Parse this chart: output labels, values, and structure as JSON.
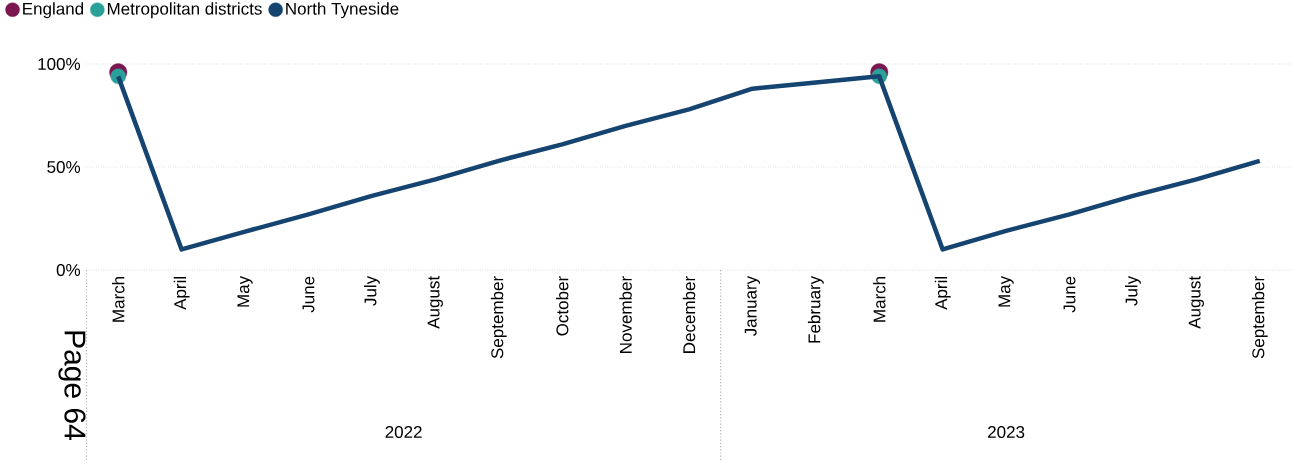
{
  "chart_data": {
    "type": "line",
    "categories": [
      "March",
      "April",
      "May",
      "June",
      "July",
      "August",
      "September",
      "October",
      "November",
      "December",
      "January",
      "February",
      "March",
      "April",
      "May",
      "June",
      "July",
      "August",
      "September"
    ],
    "series": [
      {
        "name": "England",
        "type": "scatter",
        "marker": "circle",
        "color": "#7b1650",
        "values": [
          96,
          null,
          null,
          null,
          null,
          null,
          null,
          null,
          null,
          null,
          null,
          null,
          96,
          null,
          null,
          null,
          null,
          null,
          null
        ]
      },
      {
        "name": "Metropolitan districts",
        "type": "scatter",
        "marker": "circle",
        "color": "#2aa198",
        "values": [
          94,
          null,
          null,
          null,
          null,
          null,
          null,
          null,
          null,
          null,
          null,
          null,
          94,
          null,
          null,
          null,
          null,
          null,
          null
        ]
      },
      {
        "name": "North Tyneside",
        "color": "#154471",
        "values": [
          94,
          10,
          18.6,
          27,
          36,
          44,
          53,
          61,
          70,
          78,
          88,
          91,
          94,
          10,
          19,
          27,
          36,
          44,
          53
        ]
      }
    ],
    "ylim": [
      0,
      100
    ],
    "yticks": [
      {
        "value": 0,
        "label": "0%"
      },
      {
        "value": 50,
        "label": "50%"
      },
      {
        "value": 100,
        "label": "100%"
      }
    ],
    "grid": "y",
    "legend": "top left",
    "annotations": [
      "2022",
      "2023",
      "Page 64"
    ]
  }
}
